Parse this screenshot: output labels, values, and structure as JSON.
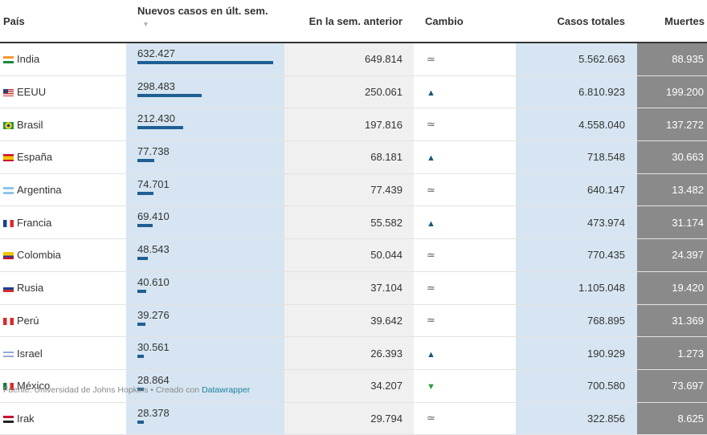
{
  "headers": {
    "country": "País",
    "new_cases": "Nuevos casos en últ. sem.",
    "prev_week": "En la sem. anterior",
    "change": "Cambio",
    "total": "Casos totales",
    "deaths": "Muertes"
  },
  "sort_arrow": "▼",
  "rows": [
    {
      "country": "India",
      "flag": "india-flag-icon",
      "new": "632.427",
      "prev": "649.814",
      "change": "≃",
      "total": "5.562.663",
      "deaths": "88.935"
    },
    {
      "country": "EEUU",
      "flag": "usa-flag-icon",
      "new": "298.483",
      "prev": "250.061",
      "change": "▲",
      "total": "6.810.923",
      "deaths": "199.200"
    },
    {
      "country": "Brasil",
      "flag": "brazil-flag-icon",
      "new": "212.430",
      "prev": "197.816",
      "change": "≃",
      "total": "4.558.040",
      "deaths": "137.272"
    },
    {
      "country": "España",
      "flag": "spain-flag-icon",
      "new": "77.738",
      "prev": "68.181",
      "change": "▲",
      "total": "718.548",
      "deaths": "30.663"
    },
    {
      "country": "Argentina",
      "flag": "argentina-flag-icon",
      "new": "74.701",
      "prev": "77.439",
      "change": "≃",
      "total": "640.147",
      "deaths": "13.482"
    },
    {
      "country": "Francia",
      "flag": "france-flag-icon",
      "new": "69.410",
      "prev": "55.582",
      "change": "▲",
      "total": "473.974",
      "deaths": "31.174"
    },
    {
      "country": "Colombia",
      "flag": "colombia-flag-icon",
      "new": "48.543",
      "prev": "50.044",
      "change": "≃",
      "total": "770.435",
      "deaths": "24.397"
    },
    {
      "country": "Rusia",
      "flag": "russia-flag-icon",
      "new": "40.610",
      "prev": "37.104",
      "change": "≃",
      "total": "1.105.048",
      "deaths": "19.420"
    },
    {
      "country": "Perú",
      "flag": "peru-flag-icon",
      "new": "39.276",
      "prev": "39.642",
      "change": "≃",
      "total": "768.895",
      "deaths": "31.369"
    },
    {
      "country": "Israel",
      "flag": "israel-flag-icon",
      "new": "30.561",
      "prev": "26.393",
      "change": "▲",
      "total": "190.929",
      "deaths": "1.273"
    },
    {
      "country": "México",
      "flag": "mexico-flag-icon",
      "new": "28.864",
      "prev": "34.207",
      "change": "▼",
      "total": "700.580",
      "deaths": "73.697"
    },
    {
      "country": "Irak",
      "flag": "iraq-flag-icon",
      "new": "28.378",
      "prev": "29.794",
      "change": "≃",
      "total": "322.856",
      "deaths": "8.625"
    }
  ],
  "footer": {
    "source": "Fuente: Universidad de Johns Hopkins • Creado con ",
    "tool": "Datawrapper"
  },
  "colors": {
    "bar": "#1f5f93",
    "new_col_bg": "#d6e5f1",
    "prev_col_bg": "#f0f0f0",
    "total_col_bg": "#d6e5f1",
    "deaths_col_bg": "#8a8a8a",
    "up_arrow": "#1a567c",
    "down_arrow": "#2f9a3c"
  },
  "chart_data": {
    "type": "table",
    "columns": [
      "País",
      "Nuevos casos en últ. sem.",
      "En la sem. anterior",
      "Cambio",
      "Casos totales",
      "Muertes"
    ],
    "bar_column": "Nuevos casos en últ. sem.",
    "bar_max": 632427,
    "categories": [
      "India",
      "EEUU",
      "Brasil",
      "España",
      "Argentina",
      "Francia",
      "Colombia",
      "Rusia",
      "Perú",
      "Israel",
      "México",
      "Irak"
    ],
    "series": [
      {
        "name": "Nuevos casos en últ. sem.",
        "values": [
          632427,
          298483,
          212430,
          77738,
          74701,
          69410,
          48543,
          40610,
          39276,
          30561,
          28864,
          28378
        ]
      },
      {
        "name": "En la sem. anterior",
        "values": [
          649814,
          250061,
          197816,
          68181,
          77439,
          55582,
          50044,
          37104,
          39642,
          26393,
          34207,
          29794
        ]
      },
      {
        "name": "Casos totales",
        "values": [
          5562663,
          6810923,
          4558040,
          718548,
          640147,
          473974,
          770435,
          1105048,
          768895,
          190929,
          700580,
          322856
        ]
      },
      {
        "name": "Muertes",
        "values": [
          88935,
          199200,
          137272,
          30663,
          13482,
          31174,
          24397,
          19420,
          31369,
          1273,
          73697,
          8625
        ]
      }
    ]
  }
}
